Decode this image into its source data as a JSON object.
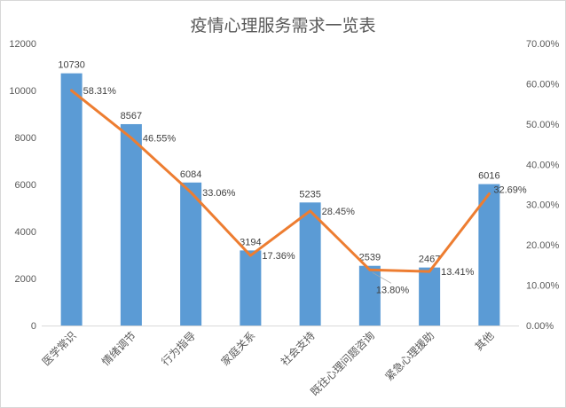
{
  "title": "疫情心理服务需求一览表",
  "colors": {
    "bar": "#5B9BD5",
    "line": "#ED7D31",
    "axis_line": "#D9D9D9",
    "tick_text": "#595959",
    "data_label_text": "#404040",
    "leader_line": "#A6A6A6",
    "background": "#FFFFFF"
  },
  "chart_data": {
    "type": "combo-bar-line",
    "title": "疫情心理服务需求一览表",
    "categories": [
      "医学常识",
      "情绪调节",
      "行为指导",
      "家庭关系",
      "社会支持",
      "既往心理问题咨询",
      "紧急心理援助",
      "其他"
    ],
    "series": [
      {
        "type": "bar",
        "axis": "left",
        "values": [
          10730,
          8567,
          6084,
          3194,
          5235,
          2539,
          2467,
          6016
        ],
        "data_labels": [
          "10730",
          "8567",
          "6084",
          "3194",
          "5235",
          "2539",
          "2467",
          "6016"
        ]
      },
      {
        "type": "line",
        "axis": "right",
        "values": [
          58.31,
          46.55,
          33.06,
          17.36,
          28.45,
          13.8,
          13.41,
          32.69
        ],
        "data_labels": [
          "58.31%",
          "46.55%",
          "33.06%",
          "17.36%",
          "28.45%",
          "13.80%",
          "13.41%",
          "32.69%"
        ]
      }
    ],
    "left_axis": {
      "min": 0,
      "max": 12000,
      "ticks": [
        "0",
        "2000",
        "4000",
        "6000",
        "8000",
        "10000",
        "12000"
      ]
    },
    "right_axis": {
      "min": 0,
      "max": 70,
      "ticks": [
        "0.00%",
        "10.00%",
        "20.00%",
        "30.00%",
        "40.00%",
        "50.00%",
        "60.00%",
        "70.00%"
      ]
    },
    "grid": false,
    "legend": "none",
    "category_label_rotation_deg": -45
  }
}
